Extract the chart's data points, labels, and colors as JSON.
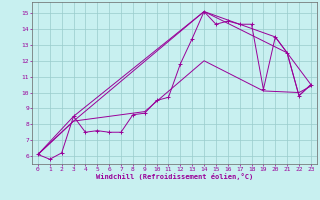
{
  "xlabel": "Windchill (Refroidissement éolien,°C)",
  "bg_color": "#c8f0f0",
  "line_color": "#990099",
  "grid_color": "#99cccc",
  "xlim": [
    -0.5,
    23.5
  ],
  "ylim": [
    5.5,
    15.7
  ],
  "xticks": [
    0,
    1,
    2,
    3,
    4,
    5,
    6,
    7,
    8,
    9,
    10,
    11,
    12,
    13,
    14,
    15,
    16,
    17,
    18,
    19,
    20,
    21,
    22,
    23
  ],
  "yticks": [
    6,
    7,
    8,
    9,
    10,
    11,
    12,
    13,
    14,
    15
  ],
  "s1_x": [
    0,
    1,
    2,
    3,
    4,
    5,
    6,
    7,
    8,
    9,
    10,
    11,
    12,
    13,
    14,
    15,
    16,
    17,
    18,
    19,
    20,
    21,
    22,
    23
  ],
  "s1_y": [
    6.1,
    5.8,
    6.2,
    8.5,
    7.5,
    7.6,
    7.5,
    7.5,
    8.6,
    8.7,
    9.5,
    9.7,
    11.8,
    13.4,
    15.1,
    14.3,
    14.5,
    14.3,
    14.3,
    10.2,
    13.5,
    12.5,
    9.8,
    10.5
  ],
  "s2_x": [
    0,
    3,
    14,
    21,
    22,
    23
  ],
  "s2_y": [
    6.1,
    8.5,
    15.1,
    12.5,
    9.8,
    10.5
  ],
  "s3_x": [
    0,
    3,
    14,
    20,
    23
  ],
  "s3_y": [
    6.1,
    8.2,
    15.1,
    13.5,
    10.5
  ],
  "s4_x": [
    0,
    3,
    9,
    14,
    19,
    22,
    23
  ],
  "s4_y": [
    6.1,
    8.2,
    8.8,
    12.0,
    10.1,
    10.0,
    10.4
  ]
}
